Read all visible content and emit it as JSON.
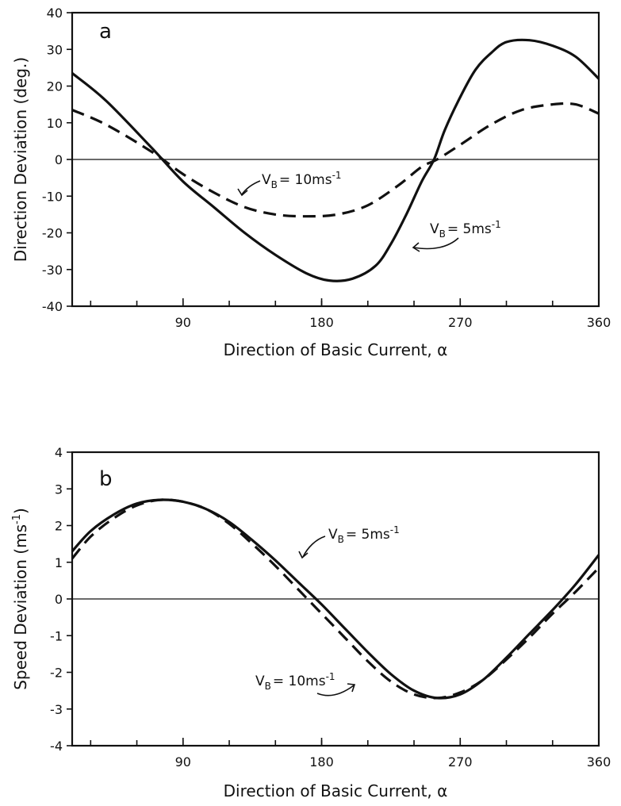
{
  "chart_data": [
    {
      "type": "line",
      "panel_label": "a",
      "xlabel": "Direction of Basic Current, α",
      "ylabel": "Direction Deviation (deg.)",
      "xlim": [
        18,
        360
      ],
      "ylim": [
        -40,
        40
      ],
      "xticks": [
        90,
        180,
        270,
        360
      ],
      "yticks": [
        -40,
        -30,
        -20,
        -10,
        0,
        10,
        20,
        30,
        40
      ],
      "grid": false,
      "series": [
        {
          "name": "V_B = 5ms⁻¹",
          "line_style": "solid",
          "x": [
            18,
            40,
            70,
            90,
            110,
            130,
            150,
            170,
            185,
            200,
            215,
            225,
            235,
            245,
            253,
            260,
            270,
            280,
            290,
            300,
            315,
            330,
            345,
            360
          ],
          "y": [
            23.5,
            16,
            3,
            -6,
            -13,
            -20,
            -26,
            -31,
            -33,
            -32.5,
            -29,
            -23,
            -15,
            -6,
            0,
            8,
            17,
            24.5,
            29,
            32,
            32.5,
            31,
            28,
            22
          ]
        },
        {
          "name": "V_B = 10ms⁻¹",
          "line_style": "dashed",
          "x": [
            18,
            40,
            70,
            90,
            110,
            130,
            150,
            170,
            190,
            210,
            230,
            245,
            255,
            270,
            290,
            310,
            330,
            345,
            360
          ],
          "y": [
            13.5,
            9.5,
            2,
            -4,
            -9,
            -13,
            -15,
            -15.5,
            -15,
            -12.5,
            -7,
            -2,
            0,
            4,
            9.5,
            13.5,
            15,
            15,
            12.5
          ]
        }
      ],
      "annotations": [
        {
          "text_prefix": "V",
          "subscript": "B",
          "text_suffix": "= 10ms",
          "superscript": "-1",
          "series": "V_B = 10ms⁻¹"
        },
        {
          "text_prefix": "V",
          "subscript": "B",
          "text_suffix": "= 5ms",
          "superscript": "-1",
          "series": "V_B = 5ms⁻¹"
        }
      ]
    },
    {
      "type": "line",
      "panel_label": "b",
      "xlabel": "Direction of Basic Current, α",
      "ylabel_prefix": "Speed Deviation (ms",
      "ylabel_superscript": "-1",
      "ylabel_suffix": ")",
      "xlim": [
        18,
        360
      ],
      "ylim": [
        -4,
        4
      ],
      "xticks": [
        90,
        180,
        270,
        360
      ],
      "yticks": [
        -4,
        -3,
        -2,
        -1,
        0,
        1,
        2,
        3,
        4
      ],
      "grid": false,
      "series": [
        {
          "name": "V_B = 5ms⁻¹",
          "line_style": "solid",
          "x": [
            18,
            30,
            45,
            60,
            75,
            90,
            105,
            120,
            135,
            150,
            165,
            180,
            195,
            210,
            225,
            240,
            255,
            270,
            285,
            300,
            315,
            330,
            345,
            360
          ],
          "y": [
            1.3,
            1.85,
            2.3,
            2.6,
            2.7,
            2.65,
            2.45,
            2.1,
            1.6,
            1.05,
            0.45,
            -0.15,
            -0.8,
            -1.45,
            -2.05,
            -2.5,
            -2.7,
            -2.6,
            -2.2,
            -1.6,
            -0.95,
            -0.3,
            0.4,
            1.2
          ]
        },
        {
          "name": "V_B = 10ms⁻¹",
          "line_style": "dashed",
          "x": [
            18,
            30,
            45,
            60,
            75,
            90,
            105,
            120,
            135,
            150,
            165,
            180,
            195,
            210,
            225,
            240,
            255,
            270,
            285,
            300,
            315,
            330,
            345,
            360
          ],
          "y": [
            1.1,
            1.7,
            2.2,
            2.55,
            2.7,
            2.65,
            2.45,
            2.05,
            1.5,
            0.9,
            0.25,
            -0.4,
            -1.05,
            -1.7,
            -2.25,
            -2.6,
            -2.7,
            -2.55,
            -2.2,
            -1.65,
            -1.05,
            -0.4,
            0.2,
            0.85
          ]
        }
      ],
      "annotations": [
        {
          "text_prefix": "V",
          "subscript": "B",
          "text_suffix": "= 5ms",
          "superscript": "-1",
          "series": "V_B = 5ms⁻¹"
        },
        {
          "text_prefix": "V",
          "subscript": "B",
          "text_suffix": "= 10ms",
          "superscript": "-1",
          "series": "V_B = 10ms⁻¹"
        }
      ]
    }
  ]
}
